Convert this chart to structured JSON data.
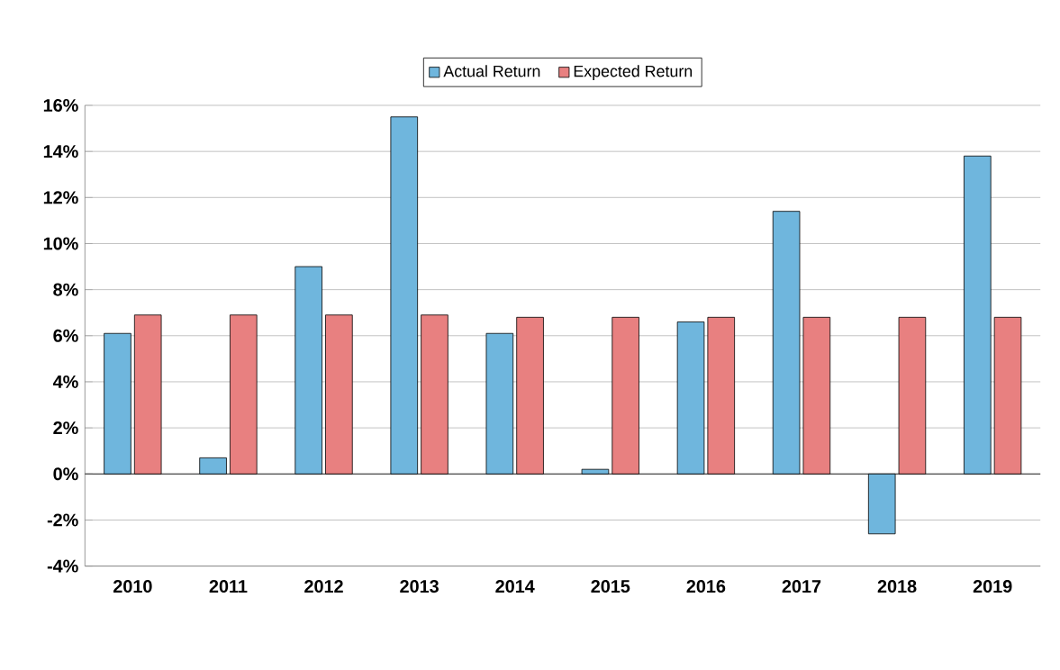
{
  "chart_data": {
    "type": "bar",
    "categories": [
      "2010",
      "2011",
      "2012",
      "2013",
      "2014",
      "2015",
      "2016",
      "2017",
      "2018",
      "2019"
    ],
    "series": [
      {
        "name": "Actual Return",
        "color": "#6fb6dd",
        "values": [
          6.1,
          0.7,
          9.0,
          15.5,
          6.1,
          0.2,
          6.6,
          11.4,
          -2.6,
          13.8
        ]
      },
      {
        "name": "Expected Return",
        "color": "#e88080",
        "values": [
          6.9,
          6.9,
          6.9,
          6.9,
          6.8,
          6.8,
          6.8,
          6.8,
          6.8,
          6.8
        ]
      }
    ],
    "ylim": [
      -4,
      16
    ],
    "yticks": [
      {
        "value": -4,
        "label": "-4%"
      },
      {
        "value": -2,
        "label": "-2%"
      },
      {
        "value": 0,
        "label": "0%"
      },
      {
        "value": 2,
        "label": "2%"
      },
      {
        "value": 4,
        "label": "4%"
      },
      {
        "value": 6,
        "label": "6%"
      },
      {
        "value": 8,
        "label": "8%"
      },
      {
        "value": 10,
        "label": "10%"
      },
      {
        "value": 12,
        "label": "12%"
      },
      {
        "value": 14,
        "label": "14%"
      },
      {
        "value": 16,
        "label": "16%"
      }
    ],
    "grid": "y",
    "legend": "top"
  }
}
